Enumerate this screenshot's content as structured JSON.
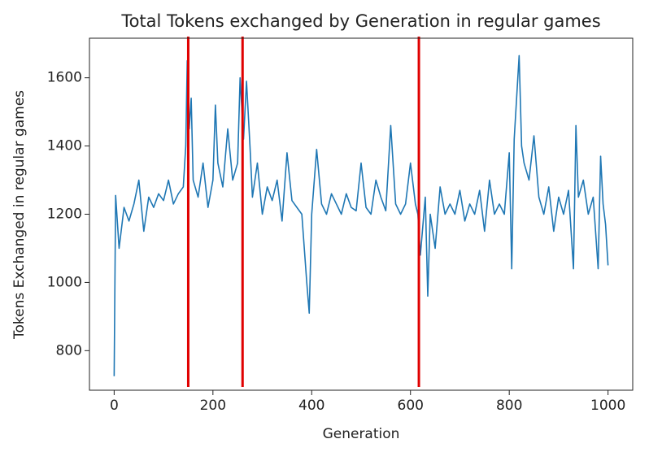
{
  "chart_data": {
    "type": "line",
    "title": "Total Tokens exchanged by Generation in regular games",
    "xlabel": "Generation",
    "ylabel": "Tokens Exchanged in regular games",
    "xlim": [
      -50,
      1050
    ],
    "ylim": [
      684,
      1716
    ],
    "xticks": [
      0,
      200,
      400,
      600,
      800,
      1000
    ],
    "yticks": [
      800,
      1000,
      1200,
      1400,
      1600
    ],
    "vlines": [
      150,
      260,
      617
    ],
    "vline_color": "#e00000",
    "series": [
      {
        "color": "#1f77b4",
        "x": [
          0,
          3,
          10,
          20,
          30,
          40,
          50,
          60,
          70,
          80,
          90,
          100,
          110,
          120,
          130,
          140,
          145,
          148,
          152,
          156,
          160,
          170,
          180,
          190,
          200,
          205,
          210,
          220,
          230,
          240,
          250,
          255,
          262,
          268,
          275,
          280,
          290,
          300,
          310,
          320,
          330,
          340,
          350,
          360,
          370,
          380,
          390,
          395,
          400,
          410,
          420,
          430,
          440,
          450,
          460,
          470,
          480,
          490,
          500,
          510,
          520,
          530,
          540,
          550,
          560,
          570,
          580,
          590,
          600,
          610,
          615,
          620,
          630,
          635,
          640,
          650,
          660,
          670,
          680,
          690,
          700,
          710,
          720,
          730,
          740,
          750,
          760,
          770,
          780,
          790,
          800,
          805,
          810,
          820,
          825,
          830,
          840,
          850,
          860,
          870,
          880,
          890,
          900,
          910,
          920,
          930,
          935,
          940,
          950,
          960,
          970,
          980,
          985,
          990,
          995,
          1000
        ],
        "values": [
          725,
          1255,
          1100,
          1220,
          1180,
          1230,
          1300,
          1150,
          1250,
          1220,
          1260,
          1240,
          1300,
          1230,
          1260,
          1280,
          1400,
          1650,
          1450,
          1540,
          1300,
          1250,
          1350,
          1220,
          1300,
          1520,
          1350,
          1280,
          1450,
          1300,
          1350,
          1600,
          1420,
          1590,
          1400,
          1250,
          1350,
          1200,
          1280,
          1240,
          1300,
          1180,
          1380,
          1240,
          1220,
          1200,
          1000,
          910,
          1200,
          1390,
          1230,
          1200,
          1260,
          1230,
          1200,
          1260,
          1220,
          1210,
          1350,
          1220,
          1200,
          1300,
          1250,
          1210,
          1460,
          1230,
          1200,
          1230,
          1350,
          1230,
          1200,
          1080,
          1250,
          960,
          1200,
          1100,
          1280,
          1200,
          1230,
          1200,
          1270,
          1180,
          1230,
          1200,
          1270,
          1150,
          1300,
          1200,
          1230,
          1200,
          1380,
          1040,
          1420,
          1665,
          1400,
          1350,
          1300,
          1430,
          1250,
          1200,
          1280,
          1150,
          1250,
          1200,
          1270,
          1040,
          1460,
          1250,
          1300,
          1200,
          1250,
          1040,
          1370,
          1230,
          1170,
          1050
        ]
      }
    ]
  }
}
